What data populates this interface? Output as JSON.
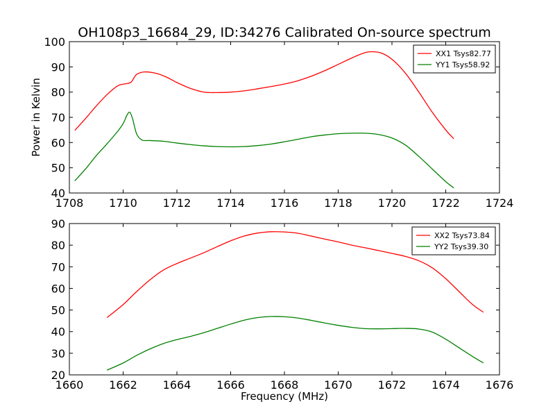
{
  "figure_title": "OH108p3_16684_29, ID:34276 Calibrated On-source spectrum",
  "ylabel": "Power in Kelvin",
  "xlabel": "Frequency (MHz)",
  "colors": {
    "XX": "#ff0000",
    "YY": "#008000",
    "axes": "#000000",
    "background": "#ffffff"
  },
  "chart_data": [
    {
      "type": "line",
      "title": "OH108p3_16684_29, ID:34276 Calibrated On-source spectrum",
      "ylabel": "Power in Kelvin",
      "xlabel": "",
      "xlim": [
        1708,
        1724
      ],
      "ylim": [
        40,
        100
      ],
      "xticks": [
        "1708",
        "1710",
        "1712",
        "1714",
        "1716",
        "1718",
        "1720",
        "1722",
        "1724"
      ],
      "yticks": [
        "40",
        "50",
        "60",
        "70",
        "80",
        "90",
        "100"
      ],
      "legend_position": "top-right",
      "grid": false,
      "series": [
        {
          "name": "XX1 Tsys82.77",
          "color": "#ff0000",
          "x": [
            1708.2,
            1708.6,
            1709.0,
            1709.4,
            1709.8,
            1710.1,
            1710.3,
            1710.5,
            1710.8,
            1711.2,
            1711.6,
            1712.0,
            1712.5,
            1713.0,
            1713.5,
            1714.0,
            1714.5,
            1715.0,
            1715.5,
            1716.0,
            1716.5,
            1717.0,
            1717.5,
            1718.0,
            1718.5,
            1718.9,
            1719.2,
            1719.6,
            1720.0,
            1720.5,
            1721.0,
            1721.5,
            1722.0,
            1722.3
          ],
          "y": [
            64.8,
            69.5,
            74.5,
            79.0,
            82.5,
            83.3,
            84.0,
            87.0,
            88.0,
            87.5,
            86.0,
            83.8,
            81.5,
            80.0,
            79.8,
            80.0,
            80.5,
            81.3,
            82.2,
            83.2,
            84.5,
            86.3,
            88.5,
            91.0,
            93.5,
            95.3,
            96.0,
            95.5,
            93.0,
            87.5,
            80.0,
            72.0,
            65.0,
            61.5
          ]
        },
        {
          "name": "YY1 Tsys58.92",
          "color": "#008000",
          "x": [
            1708.2,
            1708.6,
            1709.0,
            1709.4,
            1709.8,
            1710.0,
            1710.15,
            1710.25,
            1710.35,
            1710.5,
            1710.7,
            1711.0,
            1711.5,
            1712.0,
            1712.5,
            1713.0,
            1713.5,
            1714.0,
            1714.5,
            1715.0,
            1715.5,
            1716.0,
            1716.5,
            1717.0,
            1717.5,
            1718.0,
            1718.5,
            1719.0,
            1719.5,
            1720.0,
            1720.5,
            1721.0,
            1721.5,
            1722.0,
            1722.3
          ],
          "y": [
            44.8,
            49.5,
            54.8,
            59.5,
            64.5,
            67.5,
            71.0,
            72.0,
            69.5,
            63.5,
            61.0,
            60.8,
            60.5,
            59.8,
            59.2,
            58.7,
            58.4,
            58.3,
            58.4,
            58.8,
            59.4,
            60.3,
            61.3,
            62.3,
            63.0,
            63.5,
            63.7,
            63.7,
            63.2,
            61.8,
            59.0,
            54.5,
            49.5,
            44.5,
            42.0
          ]
        }
      ]
    },
    {
      "type": "line",
      "title": "",
      "ylabel": "",
      "xlabel": "Frequency (MHz)",
      "xlim": [
        1660,
        1676
      ],
      "ylim": [
        20,
        90
      ],
      "xticks": [
        "1660",
        "1662",
        "1664",
        "1666",
        "1668",
        "1670",
        "1672",
        "1674",
        "1676"
      ],
      "yticks": [
        "20",
        "30",
        "40",
        "50",
        "60",
        "70",
        "80",
        "90"
      ],
      "legend_position": "top-right",
      "grid": false,
      "series": [
        {
          "name": "XX2 Tsys73.84",
          "color": "#ff0000",
          "x": [
            1661.4,
            1662.0,
            1662.5,
            1663.0,
            1663.5,
            1664.0,
            1664.5,
            1665.0,
            1665.5,
            1666.0,
            1666.5,
            1667.0,
            1667.5,
            1668.0,
            1668.5,
            1669.0,
            1669.5,
            1670.0,
            1670.5,
            1671.0,
            1671.5,
            1672.0,
            1672.5,
            1673.0,
            1673.5,
            1674.0,
            1674.5,
            1675.0,
            1675.4
          ],
          "y": [
            46.5,
            52.5,
            58.5,
            64.0,
            68.5,
            71.5,
            74.0,
            76.5,
            79.3,
            82.0,
            84.2,
            85.6,
            86.2,
            86.1,
            85.5,
            84.2,
            82.8,
            81.5,
            80.0,
            78.8,
            77.5,
            76.2,
            74.8,
            72.8,
            69.5,
            64.5,
            58.5,
            52.5,
            49.0
          ]
        },
        {
          "name": "YY2 Tsys39.30",
          "color": "#008000",
          "x": [
            1661.4,
            1662.0,
            1662.5,
            1663.0,
            1663.5,
            1664.0,
            1664.5,
            1665.0,
            1665.5,
            1666.0,
            1666.5,
            1667.0,
            1667.5,
            1668.0,
            1668.5,
            1669.0,
            1669.5,
            1670.0,
            1670.5,
            1671.0,
            1671.5,
            1672.0,
            1672.5,
            1673.0,
            1673.5,
            1674.0,
            1674.5,
            1675.0,
            1675.4
          ],
          "y": [
            22.2,
            25.5,
            29.0,
            32.0,
            34.5,
            36.3,
            37.8,
            39.5,
            41.5,
            43.5,
            45.3,
            46.5,
            47.0,
            46.9,
            46.3,
            45.2,
            44.0,
            42.9,
            42.0,
            41.4,
            41.3,
            41.4,
            41.5,
            41.2,
            39.8,
            36.5,
            32.5,
            28.5,
            25.5
          ]
        }
      ]
    }
  ]
}
